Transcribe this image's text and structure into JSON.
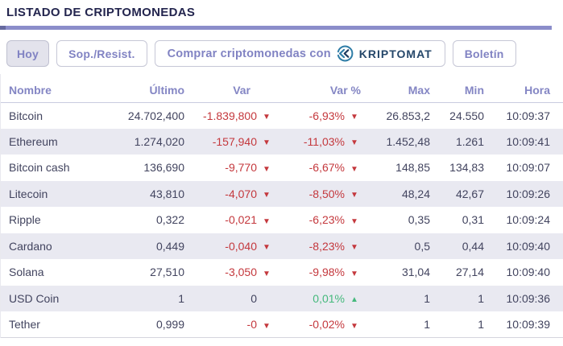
{
  "title": "LISTADO DE CRIPTOMONEDAS",
  "toolbar": {
    "today_label": "Hoy",
    "support_resist_label": "Sop./Resist.",
    "buy_label": "Comprar criptomonedas con",
    "brand": "KRIPTOMAT",
    "newsletter_label": "Boletín"
  },
  "table": {
    "columns": {
      "name": "Nombre",
      "last": "Último",
      "var": "Var",
      "var_pct": "Var %",
      "max": "Max",
      "min": "Min",
      "time": "Hora"
    },
    "rows": [
      {
        "name": "Bitcoin",
        "last": "24.702,400",
        "var": "-1.839,800",
        "var_dir": "down",
        "var_pct": "-6,93%",
        "var_pct_dir": "down",
        "max": "26.853,2",
        "min": "24.550",
        "time": "10:09:37"
      },
      {
        "name": "Ethereum",
        "last": "1.274,020",
        "var": "-157,940",
        "var_dir": "down",
        "var_pct": "-11,03%",
        "var_pct_dir": "down",
        "max": "1.452,48",
        "min": "1.261",
        "time": "10:09:41"
      },
      {
        "name": "Bitcoin cash",
        "last": "136,690",
        "var": "-9,770",
        "var_dir": "down",
        "var_pct": "-6,67%",
        "var_pct_dir": "down",
        "max": "148,85",
        "min": "134,83",
        "time": "10:09:07"
      },
      {
        "name": "Litecoin",
        "last": "43,810",
        "var": "-4,070",
        "var_dir": "down",
        "var_pct": "-8,50%",
        "var_pct_dir": "down",
        "max": "48,24",
        "min": "42,67",
        "time": "10:09:26"
      },
      {
        "name": "Ripple",
        "last": "0,322",
        "var": "-0,021",
        "var_dir": "down",
        "var_pct": "-6,23%",
        "var_pct_dir": "down",
        "max": "0,35",
        "min": "0,31",
        "time": "10:09:24"
      },
      {
        "name": "Cardano",
        "last": "0,449",
        "var": "-0,040",
        "var_dir": "down",
        "var_pct": "-8,23%",
        "var_pct_dir": "down",
        "max": "0,5",
        "min": "0,44",
        "time": "10:09:40"
      },
      {
        "name": "Solana",
        "last": "27,510",
        "var": "-3,050",
        "var_dir": "down",
        "var_pct": "-9,98%",
        "var_pct_dir": "down",
        "max": "31,04",
        "min": "27,14",
        "time": "10:09:40"
      },
      {
        "name": "USD Coin",
        "last": "1",
        "var": "0",
        "var_dir": "none",
        "var_pct": "0,01%",
        "var_pct_dir": "up",
        "max": "1",
        "min": "1",
        "time": "10:09:36"
      },
      {
        "name": "Tether",
        "last": "0,999",
        "var": "-0",
        "var_dir": "down",
        "var_pct": "-0,02%",
        "var_pct_dir": "down",
        "max": "1",
        "min": "1",
        "time": "10:09:39"
      }
    ]
  },
  "icons": {
    "down_triangle": "▼",
    "up_triangle": "▲"
  },
  "colors": {
    "accent_purple": "#8b8dca",
    "header_text": "#8486c4",
    "title_text": "#23254e",
    "negative": "#c4383d",
    "positive": "#45b97c",
    "brand_navy": "#25476a",
    "logo_blue": "#2e7ca6",
    "shaded_row": "#e9e9f1"
  }
}
